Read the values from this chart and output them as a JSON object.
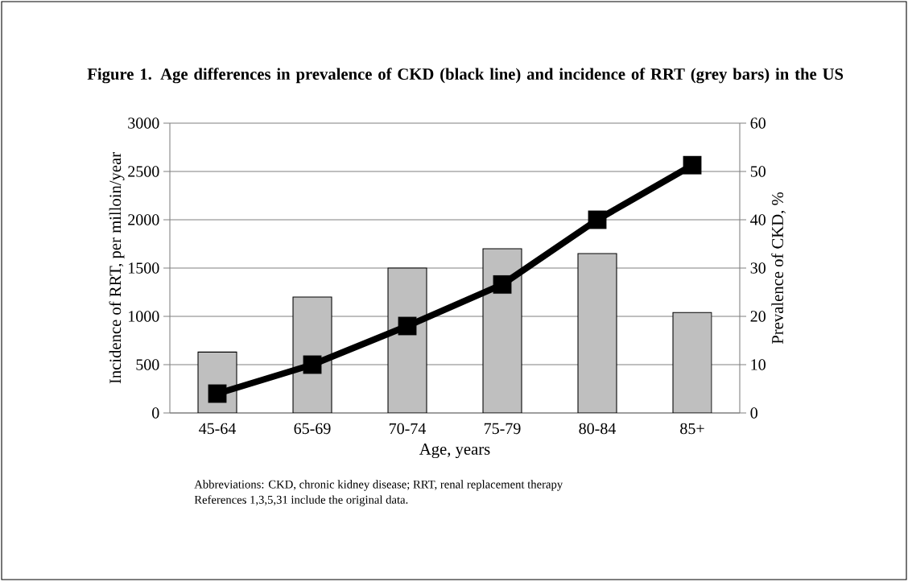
{
  "chart_data": {
    "type": "bar",
    "title": "Figure 1. Age differences in prevalence of CKD (black line) and incidence of RRT (grey bars) in the US",
    "xlabel": "Age, years",
    "ylabel": "Incidence of RRT, per milloin/year",
    "y2label": "Prevalence of CKD, %",
    "categories": [
      "45-64",
      "65-69",
      "70-74",
      "75-79",
      "80-84",
      "85+"
    ],
    "series": [
      {
        "color": "#bfbfbf",
        "values": [
          630,
          1200,
          1500,
          1700,
          1650,
          1040
        ]
      },
      {
        "type": "line",
        "axis": "y2",
        "color": "#000000",
        "values": [
          4,
          10,
          18,
          26.6,
          40,
          51.3
        ]
      }
    ],
    "marker": "square",
    "grid": "y",
    "ylim": [
      0,
      3000
    ],
    "yticks": [
      0,
      500,
      1000,
      1500,
      2000,
      2500,
      3000
    ],
    "y2lim": [
      0,
      60
    ],
    "y2ticks": [
      0,
      10,
      20,
      30,
      40,
      50,
      60
    ],
    "annotations": [
      "Abbreviations: CKD, chronic kidney disease; RRT, renal replacement therapy",
      "References 1,3,5,31 include the original data."
    ]
  }
}
